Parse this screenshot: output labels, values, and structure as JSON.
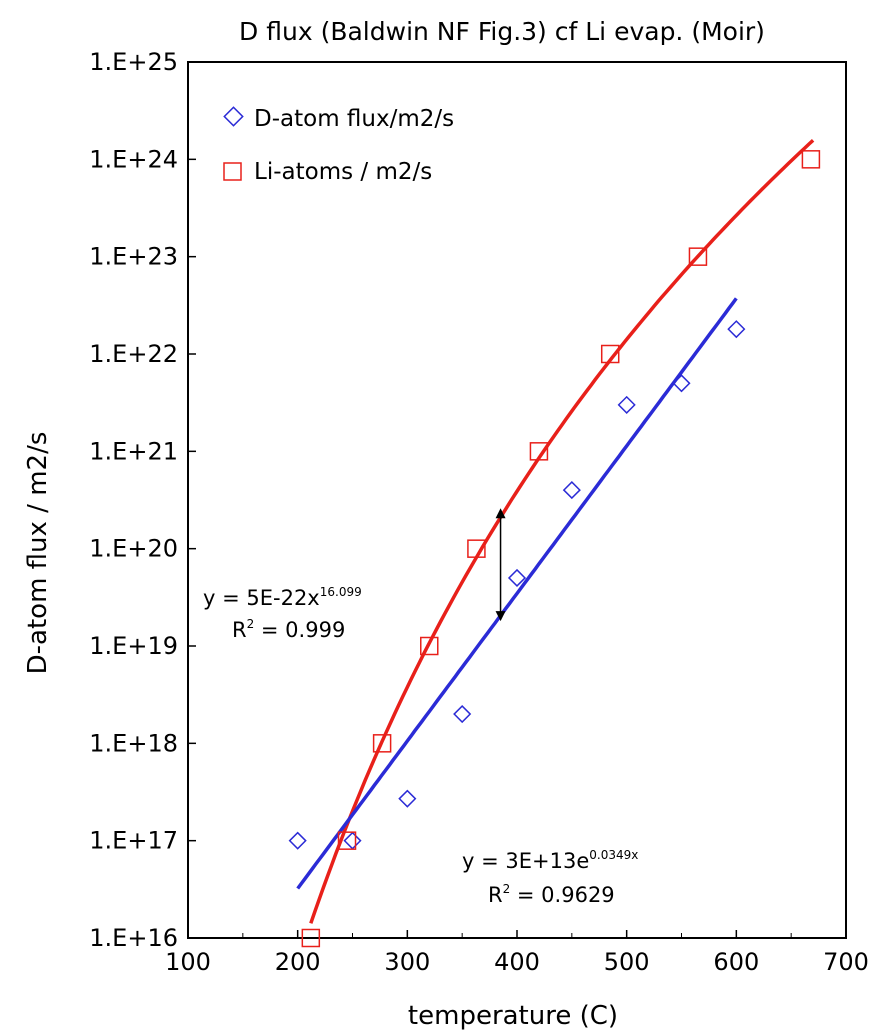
{
  "chart_data": {
    "type": "scatter",
    "title": "D flux (Baldwin NF Fig.3) cf Li evap. (Moir)",
    "xlabel": "temperature (C)",
    "ylabel": "D-atom flux / m2/s",
    "xlim": [
      100,
      700
    ],
    "ylim": [
      1e+16,
      1e+25
    ],
    "yscale": "log",
    "grid": false,
    "legend_position": "top-left",
    "x_ticks": [
      "100",
      "200",
      "300",
      "400",
      "500",
      "600",
      "700"
    ],
    "y_ticks": [
      "1.E+16",
      "1.E+17",
      "1.E+18",
      "1.E+19",
      "1.E+20",
      "1.E+21",
      "1.E+22",
      "1.E+23",
      "1.E+24",
      "1.E+25"
    ],
    "series": [
      {
        "name": "D-atom flux/m2/s",
        "marker": "diamond",
        "color": "#2b2bd6",
        "x": [
          200,
          250,
          300,
          350,
          400,
          450,
          500,
          550,
          600
        ],
        "y": [
          1e+17,
          1e+17,
          2.7e+17,
          2e+18,
          5e+19,
          4e+20,
          3e+21,
          5e+21,
          1.8e+22
        ]
      },
      {
        "name": "Li-atoms / m2/s",
        "marker": "square",
        "color": "#e8201a",
        "x": [
          212,
          245,
          277,
          320,
          363,
          420,
          485,
          565,
          668
        ],
        "y": [
          1e+16,
          1e+17,
          1e+18,
          1e+19,
          1e+20,
          1e+21,
          1e+22,
          1e+23,
          1e+24
        ]
      }
    ],
    "trendlines": [
      {
        "series": "Li-atoms / m2/s",
        "type": "power",
        "a": 5e-22,
        "b": 16.099,
        "color": "#e8201a",
        "xrange": [
          212,
          670
        ],
        "equation_prefix": "y = 5E-22x",
        "equation_exp": "16.099",
        "r2_label": " = 0.999"
      },
      {
        "series": "D-atom flux/m2/s",
        "type": "exponential",
        "a": 30000000000000.0,
        "b": 0.0349,
        "color": "#2b2bd6",
        "xrange": [
          200,
          600
        ],
        "equation_prefix": "y = 3E+13e",
        "equation_exp": "0.0349x",
        "r2_label": " = 0.9629"
      }
    ],
    "annotations": [
      {
        "type": "double-arrow",
        "x": 385,
        "y_from": 2.6e+20,
        "y_to": 1.8e+19,
        "color": "#000000"
      }
    ]
  }
}
